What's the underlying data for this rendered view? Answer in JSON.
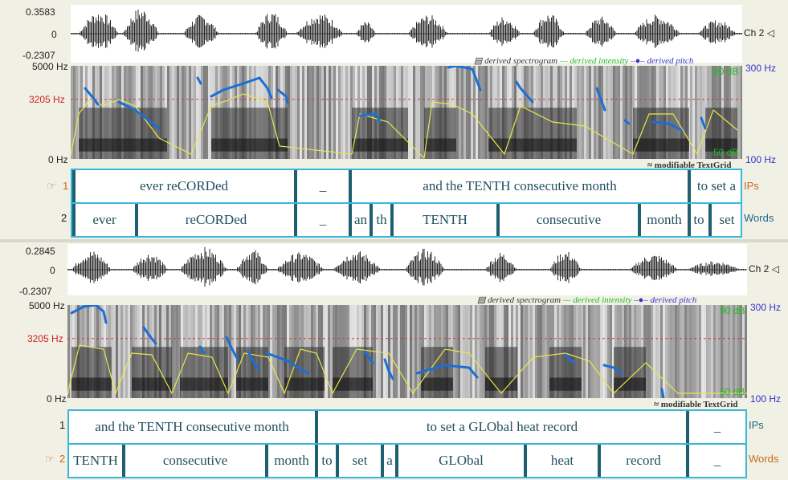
{
  "panel_top": {
    "wave_max": "0.3583",
    "wave_zero": "0",
    "wave_min": "-0.2307",
    "channel": "Ch 2",
    "freq_max": "5000 Hz",
    "freq_mark": "3205 Hz",
    "freq_min": "0 Hz",
    "pitch_max": "300 Hz",
    "pitch_min": "100 Hz",
    "int_max": "90 dB",
    "int_min": "50 dB",
    "legend_spectrogram": "derived spectrogram",
    "legend_intensity": "— derived intensity",
    "legend_pitch": "derived pitch",
    "textgrid_label": "modifiable TextGrid",
    "tier1_num": "1",
    "tier1_name": "IPs",
    "tier2_num": "2",
    "tier2_name": "Words",
    "ips": [
      "ever reCORDed",
      "_",
      "and the TENTH consecutive month",
      "to set a"
    ],
    "words": [
      "ever",
      "reCORDed",
      "_",
      "an",
      "th",
      "TENTH",
      "consecutive",
      "month",
      "to",
      "set"
    ]
  },
  "panel_bottom": {
    "wave_max": "0.2845",
    "wave_zero": "0",
    "wave_min": "-0.2307",
    "channel": "Ch 2",
    "freq_max": "5000 Hz",
    "freq_mark": "3205 Hz",
    "freq_min": "0 Hz",
    "pitch_max": "300 Hz",
    "pitch_min": "100 Hz",
    "int_max": "90 dB",
    "int_min": "50 dB",
    "legend_spectrogram": "derived spectrogram",
    "legend_intensity": "— derived intensity",
    "legend_pitch": "derived pitch",
    "textgrid_label": "modifiable TextGrid",
    "tier1_num": "1",
    "tier1_name": "IPs",
    "tier2_num": "2",
    "tier2_name": "Words",
    "ips": [
      "and the TENTH consecutive month",
      "to set a GLObal heat record",
      "_"
    ],
    "words": [
      "TENTH",
      "consecutive",
      "month",
      "to",
      "set",
      "a",
      "GLObal",
      "heat",
      "record",
      "_"
    ]
  },
  "colors": {
    "pitch": "#1a6fd6",
    "intensity": "#e8e84a",
    "textgrid_border": "#38b8d8",
    "boundary": "#1f5f6f"
  }
}
